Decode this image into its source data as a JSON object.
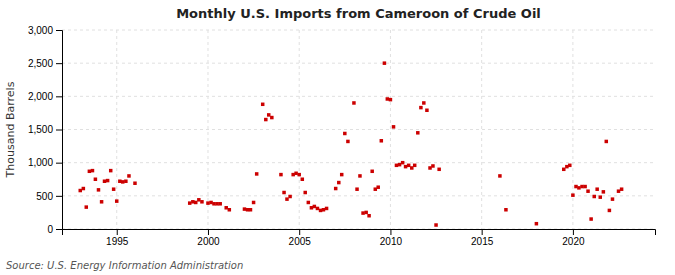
{
  "chart_data": {
    "type": "scatter",
    "title": "Monthly U.S. Imports from Cameroon of Crude Oil",
    "ylabel": "Thousand Barrels",
    "annotations": [
      "Source: U.S. Energy Information Administration"
    ],
    "color": "#cc0000",
    "marker": "square",
    "grid": true,
    "xlim": [
      1992.0,
      2024.5
    ],
    "xticks": [
      1995,
      2000,
      2005,
      2010,
      2015,
      2020
    ],
    "ylim": [
      0,
      3000
    ],
    "yticks": [
      0,
      500,
      {
        "value": 1000,
        "label": "1,000"
      },
      {
        "value": 1500,
        "label": "1,500"
      },
      {
        "value": 2000,
        "label": "2,000"
      },
      {
        "value": 2500,
        "label": "2,500"
      },
      {
        "value": 3000,
        "label": "3,000"
      }
    ],
    "x": [
      1993.0,
      1993.17,
      1993.33,
      1993.5,
      1993.67,
      1993.83,
      1994.0,
      1994.17,
      1994.33,
      1994.5,
      1994.67,
      1994.83,
      1995.0,
      1995.17,
      1995.33,
      1995.5,
      1995.67,
      1996.0,
      1999.0,
      1999.17,
      1999.33,
      1999.5,
      1999.67,
      2000.0,
      2000.17,
      2000.33,
      2000.5,
      2000.67,
      2001.0,
      2001.17,
      2002.0,
      2002.17,
      2002.33,
      2002.5,
      2002.67,
      2003.0,
      2003.17,
      2003.33,
      2003.5,
      2004.0,
      2004.17,
      2004.33,
      2004.5,
      2004.67,
      2004.83,
      2005.0,
      2005.17,
      2005.33,
      2005.5,
      2005.67,
      2005.83,
      2006.0,
      2006.17,
      2006.33,
      2006.5,
      2007.0,
      2007.17,
      2007.33,
      2007.5,
      2007.67,
      2008.0,
      2008.17,
      2008.33,
      2008.5,
      2008.67,
      2008.83,
      2009.0,
      2009.17,
      2009.33,
      2009.5,
      2009.67,
      2009.83,
      2010.0,
      2010.17,
      2010.33,
      2010.5,
      2010.67,
      2010.83,
      2011.0,
      2011.17,
      2011.33,
      2011.5,
      2011.67,
      2011.83,
      2012.0,
      2012.17,
      2012.33,
      2012.5,
      2012.67,
      2016.0,
      2016.33,
      2018.0,
      2019.5,
      2019.67,
      2019.83,
      2020.0,
      2020.17,
      2020.33,
      2020.5,
      2020.67,
      2020.83,
      2021.0,
      2021.17,
      2021.33,
      2021.5,
      2021.67,
      2021.83,
      2022.0,
      2022.17,
      2022.5,
      2022.67
    ],
    "values": [
      580,
      610,
      330,
      870,
      880,
      750,
      590,
      410,
      720,
      730,
      880,
      600,
      420,
      720,
      710,
      720,
      800,
      690,
      390,
      410,
      400,
      440,
      410,
      390,
      400,
      380,
      380,
      380,
      320,
      290,
      300,
      290,
      290,
      400,
      830,
      1880,
      1650,
      1720,
      1680,
      820,
      550,
      450,
      490,
      820,
      840,
      820,
      750,
      550,
      400,
      320,
      340,
      310,
      280,
      290,
      310,
      610,
      700,
      820,
      1440,
      1320,
      1900,
      600,
      800,
      240,
      250,
      200,
      870,
      600,
      630,
      1330,
      2500,
      1960,
      1950,
      1540,
      960,
      970,
      1000,
      940,
      960,
      920,
      960,
      1450,
      1830,
      1900,
      1790,
      920,
      950,
      60,
      900,
      800,
      290,
      80,
      900,
      940,
      960,
      510,
      640,
      620,
      640,
      640,
      570,
      150,
      490,
      600,
      480,
      560,
      1320,
      280,
      450,
      570,
      600
    ]
  }
}
